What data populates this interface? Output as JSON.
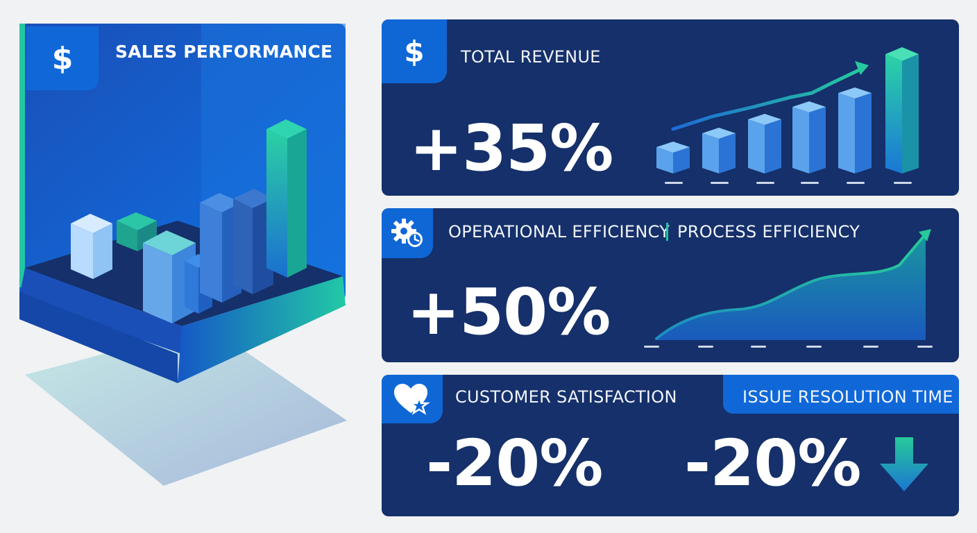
{
  "sales_panel": {
    "title": "SALES PERFORMANCE",
    "icon": "dollar-icon"
  },
  "cards": [
    {
      "title": "TOTAL REVENUE",
      "value": "+35%",
      "icon": "dollar-icon",
      "trend": "up"
    },
    {
      "title_left": "OPERATIONAL EFFICIENCY",
      "title_right": "PROCESS EFFICIENCY",
      "value": "+50%",
      "icon": "gear-clock-icon",
      "trend": "up"
    },
    {
      "title_left": "CUSTOMER SATISFACTION",
      "title_right": "ISSUE RESOLUTION TIME",
      "value_left": "-20%",
      "value_right": "-20%",
      "icon": "heart-star-icon",
      "trend": "down"
    }
  ],
  "colors": {
    "card_bg": "#15306a",
    "accent_blue": "#1068d8",
    "accent_teal": "#21c6a0",
    "page_bg": "#f1f2f4"
  }
}
